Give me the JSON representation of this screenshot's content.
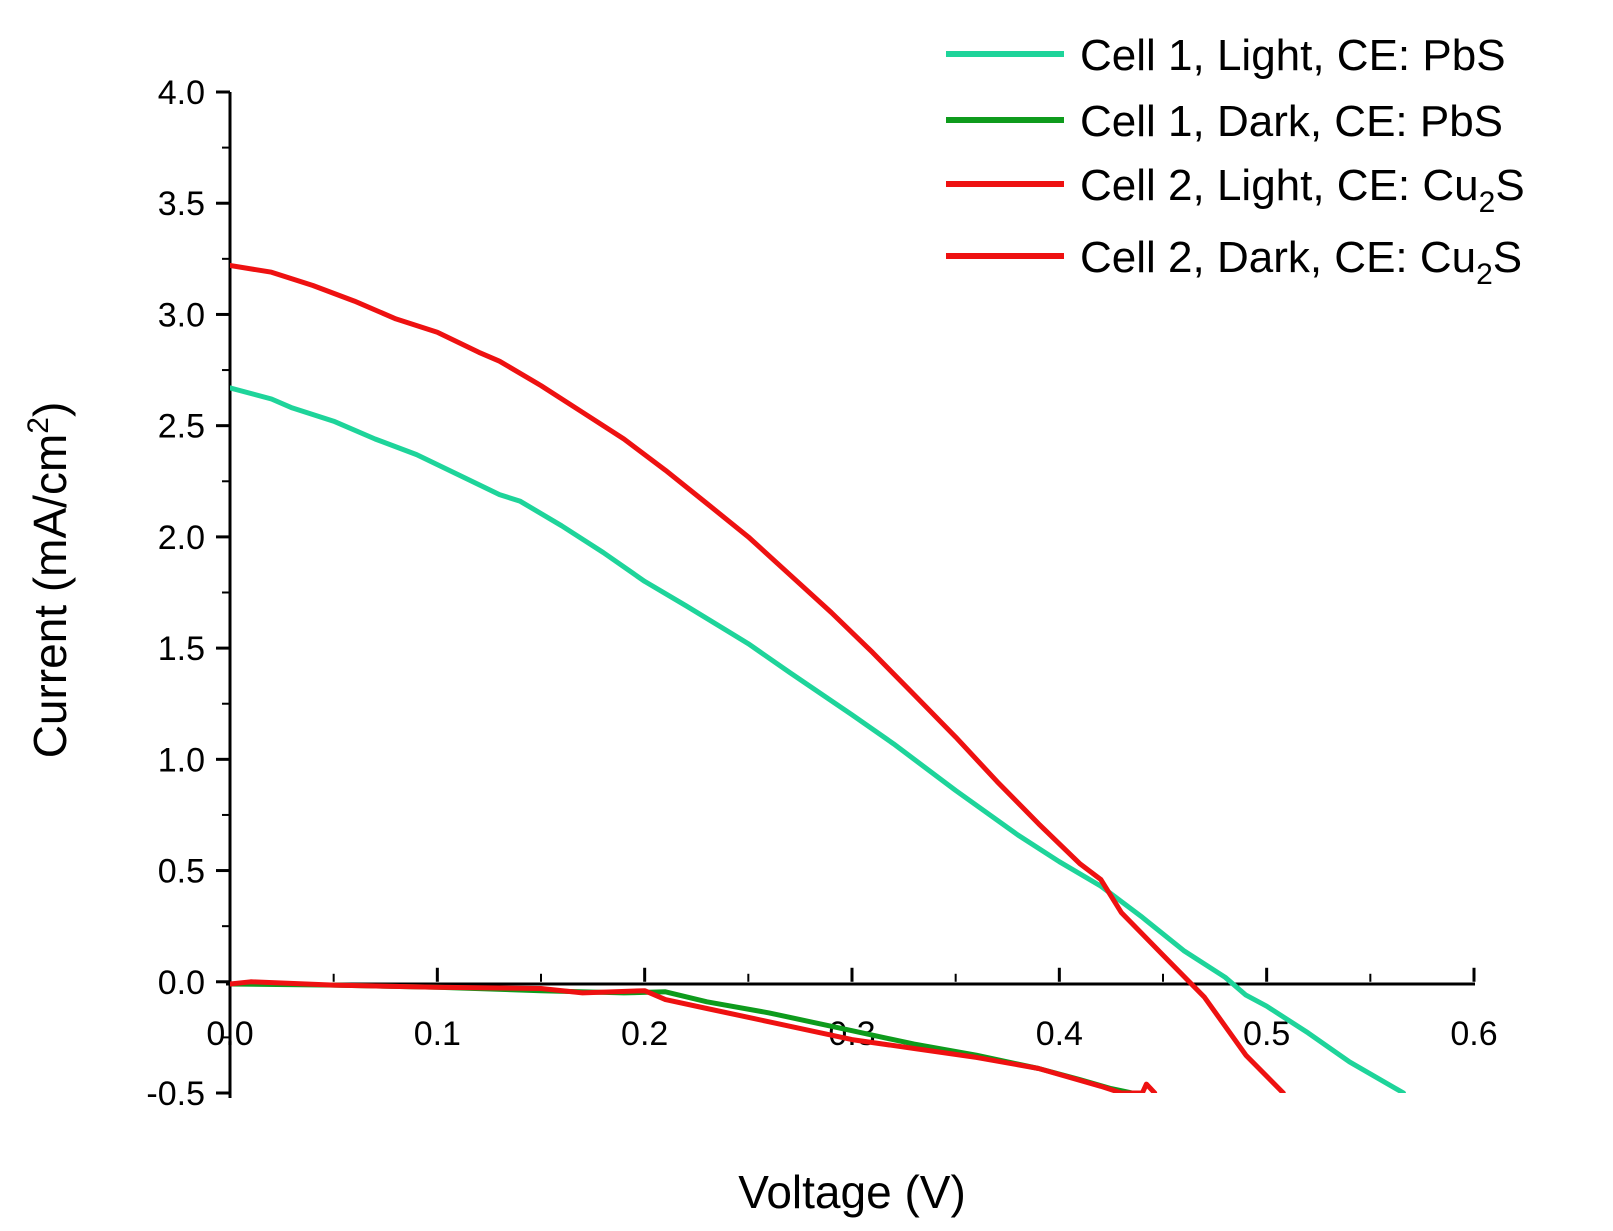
{
  "chart_data": {
    "type": "line",
    "title": "",
    "xlabel": "Voltage (V)",
    "ylabel": "Current (mA/cm²)",
    "ylabel_parts": {
      "main": "Current (mA/cm",
      "sup": "2",
      "end": ")"
    },
    "xlim": [
      0.0,
      0.6
    ],
    "ylim": [
      -0.5,
      4.0
    ],
    "x_ticks": [
      "0.0",
      "0.1",
      "0.2",
      "0.3",
      "0.4",
      "0.5",
      "0.6"
    ],
    "y_ticks": [
      "-0.5",
      "0.0",
      "0.5",
      "1.0",
      "1.5",
      "2.0",
      "2.5",
      "3.0",
      "3.5",
      "4.0"
    ],
    "grid": false,
    "legend_position": "top-right",
    "series": [
      {
        "name": "Cell 1, Light, CE: PbS",
        "label_main": "Cell 1, Light, CE: PbS",
        "label_sub": "",
        "label_end": "",
        "color": "#1ED49A",
        "points": [
          [
            0.0,
            2.67
          ],
          [
            0.02,
            2.62
          ],
          [
            0.03,
            2.58
          ],
          [
            0.05,
            2.52
          ],
          [
            0.07,
            2.44
          ],
          [
            0.09,
            2.37
          ],
          [
            0.11,
            2.28
          ],
          [
            0.13,
            2.19
          ],
          [
            0.14,
            2.16
          ],
          [
            0.16,
            2.05
          ],
          [
            0.18,
            1.93
          ],
          [
            0.2,
            1.8
          ],
          [
            0.22,
            1.69
          ],
          [
            0.25,
            1.52
          ],
          [
            0.27,
            1.39
          ],
          [
            0.3,
            1.2
          ],
          [
            0.32,
            1.07
          ],
          [
            0.35,
            0.86
          ],
          [
            0.38,
            0.66
          ],
          [
            0.4,
            0.54
          ],
          [
            0.42,
            0.43
          ],
          [
            0.44,
            0.29
          ],
          [
            0.46,
            0.14
          ],
          [
            0.48,
            0.02
          ],
          [
            0.49,
            -0.06
          ],
          [
            0.5,
            -0.11
          ],
          [
            0.52,
            -0.23
          ],
          [
            0.54,
            -0.36
          ],
          [
            0.566,
            -0.5
          ]
        ]
      },
      {
        "name": "Cell 1, Dark, CE: PbS",
        "label_main": "Cell 1, Dark, CE: PbS",
        "label_sub": "",
        "label_end": "",
        "color": "#0E9B1C",
        "points": [
          [
            0.0,
            -0.01
          ],
          [
            0.05,
            -0.015
          ],
          [
            0.1,
            -0.025
          ],
          [
            0.15,
            -0.04
          ],
          [
            0.19,
            -0.05
          ],
          [
            0.21,
            -0.045
          ],
          [
            0.23,
            -0.09
          ],
          [
            0.26,
            -0.14
          ],
          [
            0.28,
            -0.18
          ],
          [
            0.3,
            -0.22
          ],
          [
            0.33,
            -0.28
          ],
          [
            0.36,
            -0.33
          ],
          [
            0.39,
            -0.39
          ],
          [
            0.41,
            -0.44
          ],
          [
            0.425,
            -0.48
          ],
          [
            0.435,
            -0.5
          ]
        ]
      },
      {
        "name": "Cell 2, Light, CE: Cu₂S",
        "label_main": "Cell 2, Light, CE: Cu",
        "label_sub": "2",
        "label_end": "S",
        "color": "#EE1111",
        "points": [
          [
            0.0,
            3.22
          ],
          [
            0.02,
            3.19
          ],
          [
            0.04,
            3.13
          ],
          [
            0.06,
            3.06
          ],
          [
            0.08,
            2.98
          ],
          [
            0.1,
            2.92
          ],
          [
            0.12,
            2.83
          ],
          [
            0.13,
            2.79
          ],
          [
            0.15,
            2.68
          ],
          [
            0.17,
            2.56
          ],
          [
            0.19,
            2.44
          ],
          [
            0.21,
            2.3
          ],
          [
            0.23,
            2.15
          ],
          [
            0.25,
            2.0
          ],
          [
            0.27,
            1.83
          ],
          [
            0.29,
            1.66
          ],
          [
            0.31,
            1.48
          ],
          [
            0.33,
            1.29
          ],
          [
            0.35,
            1.1
          ],
          [
            0.37,
            0.9
          ],
          [
            0.39,
            0.71
          ],
          [
            0.41,
            0.53
          ],
          [
            0.42,
            0.46
          ],
          [
            0.43,
            0.31
          ],
          [
            0.45,
            0.12
          ],
          [
            0.47,
            -0.07
          ],
          [
            0.49,
            -0.33
          ],
          [
            0.508,
            -0.5
          ]
        ]
      },
      {
        "name": "Cell 2, Dark, CE: Cu₂S",
        "label_main": "Cell 2, Dark, CE: Cu",
        "label_sub": "2",
        "label_end": "S",
        "color": "#EE1111",
        "points": [
          [
            0.0,
            -0.01
          ],
          [
            0.01,
            0.0
          ],
          [
            0.05,
            -0.015
          ],
          [
            0.1,
            -0.025
          ],
          [
            0.15,
            -0.03
          ],
          [
            0.17,
            -0.05
          ],
          [
            0.2,
            -0.04
          ],
          [
            0.21,
            -0.08
          ],
          [
            0.23,
            -0.12
          ],
          [
            0.26,
            -0.18
          ],
          [
            0.28,
            -0.22
          ],
          [
            0.3,
            -0.26
          ],
          [
            0.33,
            -0.3
          ],
          [
            0.36,
            -0.34
          ],
          [
            0.39,
            -0.39
          ],
          [
            0.42,
            -0.47
          ],
          [
            0.43,
            -0.5
          ],
          [
            0.44,
            -0.5
          ],
          [
            0.442,
            -0.46
          ],
          [
            0.446,
            -0.5
          ]
        ]
      }
    ]
  }
}
